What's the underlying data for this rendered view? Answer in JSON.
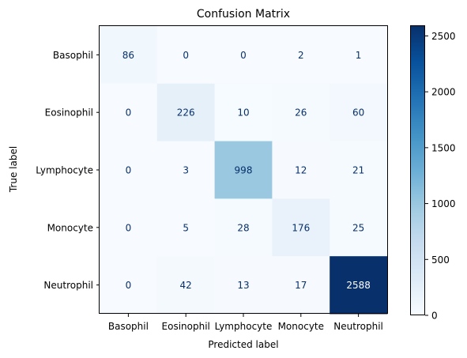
{
  "chart_data": {
    "type": "heatmap",
    "title": "Confusion Matrix",
    "xlabel": "Predicted label",
    "ylabel": "True label",
    "x_categories": [
      "Basophil",
      "Eosinophil",
      "Lymphocyte",
      "Monocyte",
      "Neutrophil"
    ],
    "y_categories": [
      "Basophil",
      "Eosinophil",
      "Lymphocyte",
      "Monocyte",
      "Neutrophil"
    ],
    "values": [
      [
        86,
        0,
        0,
        2,
        1
      ],
      [
        0,
        226,
        10,
        26,
        60
      ],
      [
        0,
        3,
        998,
        12,
        21
      ],
      [
        0,
        5,
        28,
        176,
        25
      ],
      [
        0,
        42,
        13,
        17,
        2588
      ]
    ],
    "colormap": "Blues",
    "colorbar": {
      "ticks": [
        "0",
        "500",
        "1000",
        "1500",
        "2000",
        "2500"
      ],
      "tick_values": [
        0,
        500,
        1000,
        1500,
        2000,
        2500
      ],
      "range": [
        0,
        2588
      ]
    },
    "text_colors": {
      "dark": "#08306b",
      "light": "#ffffff"
    },
    "grid": false
  }
}
